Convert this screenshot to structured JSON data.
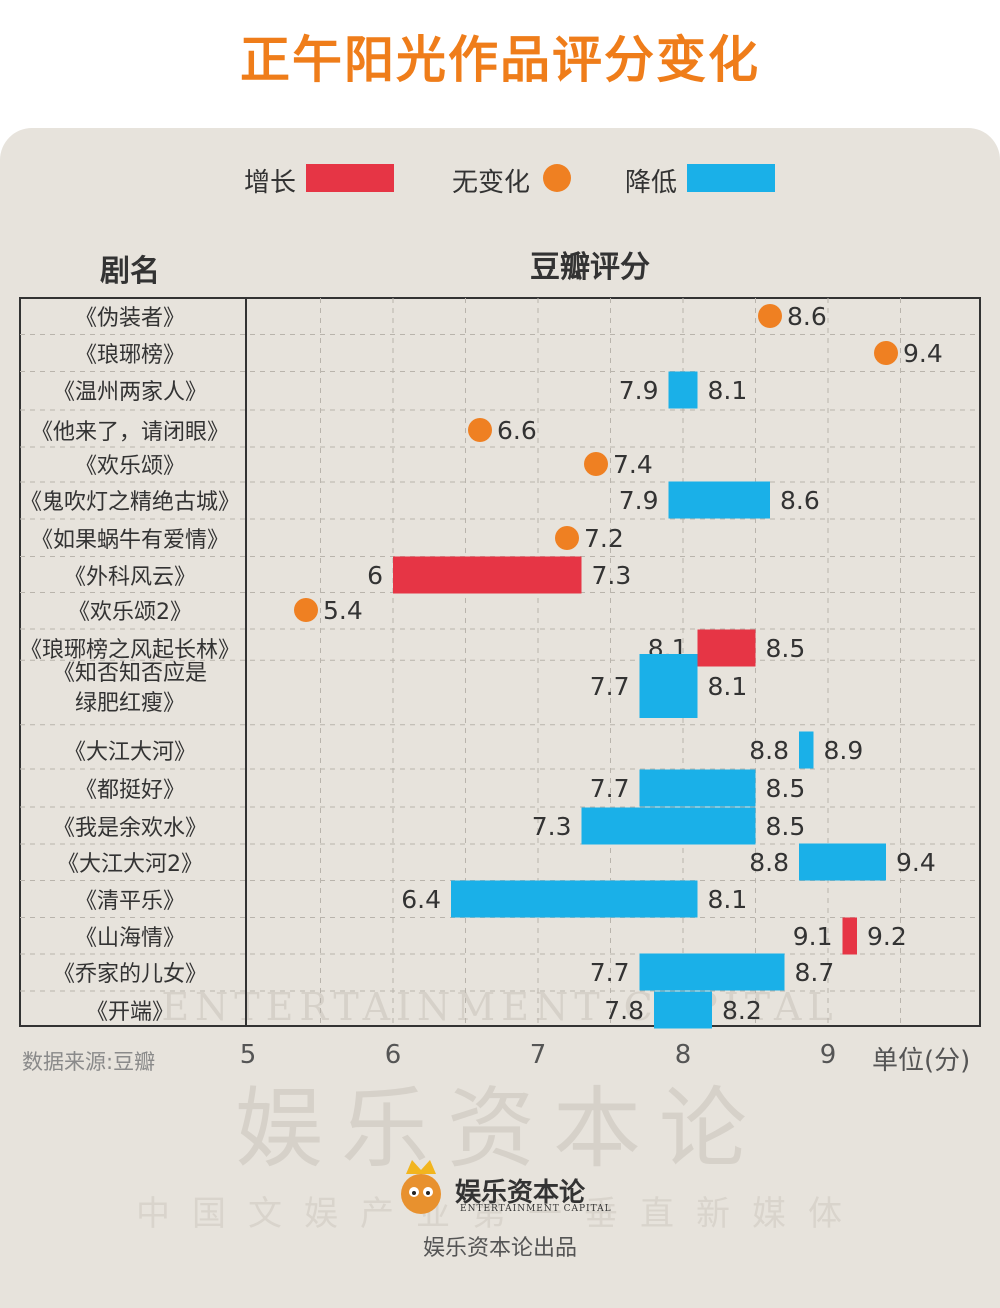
{
  "title": "正午阳光作品评分变化",
  "legend": [
    {
      "label": "增长",
      "kind": "bar",
      "color": "#e63545"
    },
    {
      "label": "无变化",
      "kind": "dot",
      "color": "#ef8022"
    },
    {
      "label": "降低",
      "kind": "bar",
      "color": "#1ab0e8"
    }
  ],
  "headers": {
    "name_col": "剧名",
    "score_col": "豆瓣评分"
  },
  "source": "数据来源:豆瓣",
  "unit": "单位(分)",
  "watermark": {
    "big": "娱乐资本论",
    "en": "ENTERTAINMENT CAPITAL",
    "sub": "中国文娱产业第一垂直新媒体"
  },
  "brand": {
    "name": "娱乐资本论",
    "en": "ENTERTAINMENT CAPITAL",
    "produced_by": "娱乐资本论出品"
  },
  "colors": {
    "increase": "#e63545",
    "same": "#ef8022",
    "decrease": "#1ab0e8"
  },
  "chart_data": {
    "type": "bar",
    "title": "正午阳光作品评分变化",
    "xlabel": "",
    "ylabel": "豆瓣评分",
    "xlim": [
      5,
      9.5
    ],
    "xticks": [
      5,
      6,
      7,
      8,
      9
    ],
    "grid": true,
    "legend_position": "top",
    "series": [
      {
        "name": "增长",
        "type": "range"
      },
      {
        "name": "无变化",
        "type": "point"
      },
      {
        "name": "降低",
        "type": "range"
      }
    ],
    "rows": [
      {
        "name": "《伪装者》",
        "change": "same",
        "value": 8.6,
        "labels": [
          "8.6"
        ]
      },
      {
        "name": "《琅琊榜》",
        "change": "same",
        "value": 9.4,
        "labels": [
          "9.4"
        ]
      },
      {
        "name": "《温州两家人》",
        "change": "decrease",
        "from": 8.1,
        "to": 7.9,
        "labels": [
          "7.9",
          "8.1"
        ]
      },
      {
        "name": "《他来了，请闭眼》",
        "change": "same",
        "value": 6.6,
        "labels": [
          "6.6"
        ]
      },
      {
        "name": "《欢乐颂》",
        "change": "same",
        "value": 7.4,
        "labels": [
          "7.4"
        ]
      },
      {
        "name": "《鬼吹灯之精绝古城》",
        "change": "decrease",
        "from": 8.6,
        "to": 7.9,
        "labels": [
          "7.9",
          "8.6"
        ]
      },
      {
        "name": "《如果蜗牛有爱情》",
        "change": "same",
        "value": 7.2,
        "labels": [
          "7.2"
        ]
      },
      {
        "name": "《外科风云》",
        "change": "increase",
        "from": 6,
        "to": 7.3,
        "labels": [
          "6",
          "7.3"
        ]
      },
      {
        "name": "《欢乐颂2》",
        "change": "same",
        "value": 5.4,
        "labels": [
          "5.4"
        ]
      },
      {
        "name": "《琅琊榜之风起长林》",
        "change": "increase",
        "from": 8.1,
        "to": 8.5,
        "labels": [
          "8.1",
          "8.5"
        ]
      },
      {
        "name": "《知否知否应是\n绿肥红瘦》",
        "change": "decrease",
        "from": 8.1,
        "to": 7.7,
        "labels": [
          "7.7",
          "8.1"
        ]
      },
      {
        "name": "《大江大河》",
        "change": "decrease",
        "from": 8.9,
        "to": 8.8,
        "labels": [
          "8.8",
          "8.9"
        ]
      },
      {
        "name": "《都挺好》",
        "change": "decrease",
        "from": 8.5,
        "to": 7.7,
        "labels": [
          "7.7",
          "8.5"
        ]
      },
      {
        "name": "《我是余欢水》",
        "change": "decrease",
        "from": 8.5,
        "to": 7.3,
        "labels": [
          "7.3",
          "8.5"
        ]
      },
      {
        "name": "《大江大河2》",
        "change": "decrease",
        "from": 9.4,
        "to": 8.8,
        "labels": [
          "8.8",
          "9.4"
        ]
      },
      {
        "name": "《清平乐》",
        "change": "decrease",
        "from": 8.1,
        "to": 6.4,
        "labels": [
          "6.4",
          "8.1"
        ]
      },
      {
        "name": "《山海情》",
        "change": "increase",
        "from": 9.1,
        "to": 9.2,
        "labels": [
          "9.1",
          "9.2"
        ]
      },
      {
        "name": "《乔家的儿女》",
        "change": "decrease",
        "from": 8.7,
        "to": 7.7,
        "labels": [
          "7.7",
          "8.7"
        ]
      },
      {
        "name": "《开端》",
        "change": "decrease",
        "from": 8.2,
        "to": 7.8,
        "labels": [
          "7.8",
          "8.2"
        ]
      }
    ]
  }
}
